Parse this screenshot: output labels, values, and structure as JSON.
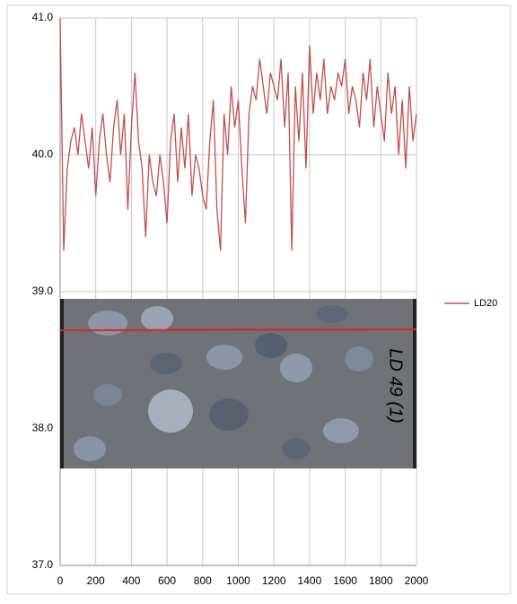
{
  "chart_data": {
    "type": "line",
    "x": [
      0,
      20,
      40,
      60,
      80,
      100,
      120,
      140,
      160,
      180,
      200,
      220,
      240,
      260,
      280,
      300,
      320,
      340,
      360,
      380,
      400,
      420,
      440,
      460,
      480,
      500,
      520,
      540,
      560,
      580,
      600,
      620,
      640,
      660,
      680,
      700,
      720,
      740,
      760,
      780,
      800,
      820,
      840,
      860,
      880,
      900,
      920,
      940,
      960,
      980,
      1000,
      1020,
      1040,
      1060,
      1080,
      1100,
      1120,
      1140,
      1160,
      1180,
      1200,
      1220,
      1240,
      1260,
      1280,
      1300,
      1320,
      1340,
      1360,
      1380,
      1400,
      1420,
      1440,
      1460,
      1480,
      1500,
      1520,
      1540,
      1560,
      1580,
      1600,
      1620,
      1640,
      1660,
      1680,
      1700,
      1720,
      1740,
      1760,
      1780,
      1800,
      1820,
      1840,
      1860,
      1880,
      1900,
      1920,
      1940,
      1960,
      1980,
      2000
    ],
    "series": [
      {
        "name": "LD20",
        "color": "#c0504d",
        "values": [
          41.0,
          39.3,
          39.9,
          40.1,
          40.2,
          40.0,
          40.3,
          40.1,
          39.9,
          40.2,
          39.7,
          40.1,
          40.3,
          40.0,
          39.8,
          40.2,
          40.4,
          40.0,
          40.3,
          39.6,
          40.2,
          40.6,
          40.1,
          39.9,
          39.4,
          40.0,
          39.8,
          39.7,
          40.0,
          39.8,
          39.5,
          40.1,
          40.3,
          39.8,
          40.2,
          39.9,
          40.3,
          39.7,
          40.0,
          39.9,
          39.7,
          39.6,
          40.1,
          40.4,
          39.6,
          39.3,
          40.3,
          40.0,
          40.5,
          40.2,
          40.4,
          39.9,
          39.5,
          40.3,
          40.5,
          40.4,
          40.7,
          40.5,
          40.3,
          40.6,
          40.5,
          40.4,
          40.7,
          40.2,
          40.6,
          39.3,
          40.5,
          40.1,
          40.6,
          39.9,
          40.8,
          40.3,
          40.6,
          40.4,
          40.7,
          40.3,
          40.5,
          40.4,
          40.6,
          40.5,
          40.7,
          40.3,
          40.5,
          40.4,
          40.2,
          40.6,
          40.4,
          40.7,
          40.2,
          40.5,
          40.3,
          40.1,
          40.6,
          40.3,
          40.5,
          40.0,
          40.4,
          39.9,
          40.5,
          40.1,
          40.3
        ]
      }
    ],
    "xlim": [
      0,
      2000
    ],
    "xticks": [
      0,
      200,
      400,
      600,
      800,
      1000,
      1200,
      1400,
      1600,
      1800,
      2000
    ],
    "ylim": [
      37,
      41
    ],
    "yticks": [
      {
        "value": 37,
        "label": "37.0"
      },
      {
        "value": 38,
        "label": "38.0"
      },
      {
        "value": 39,
        "label": "39.0"
      },
      {
        "value": 40,
        "label": "40.0"
      },
      {
        "value": 41,
        "label": "41.0"
      }
    ],
    "grid": true,
    "legend": "right",
    "annotations": [
      "LD 49 (1)"
    ]
  }
}
